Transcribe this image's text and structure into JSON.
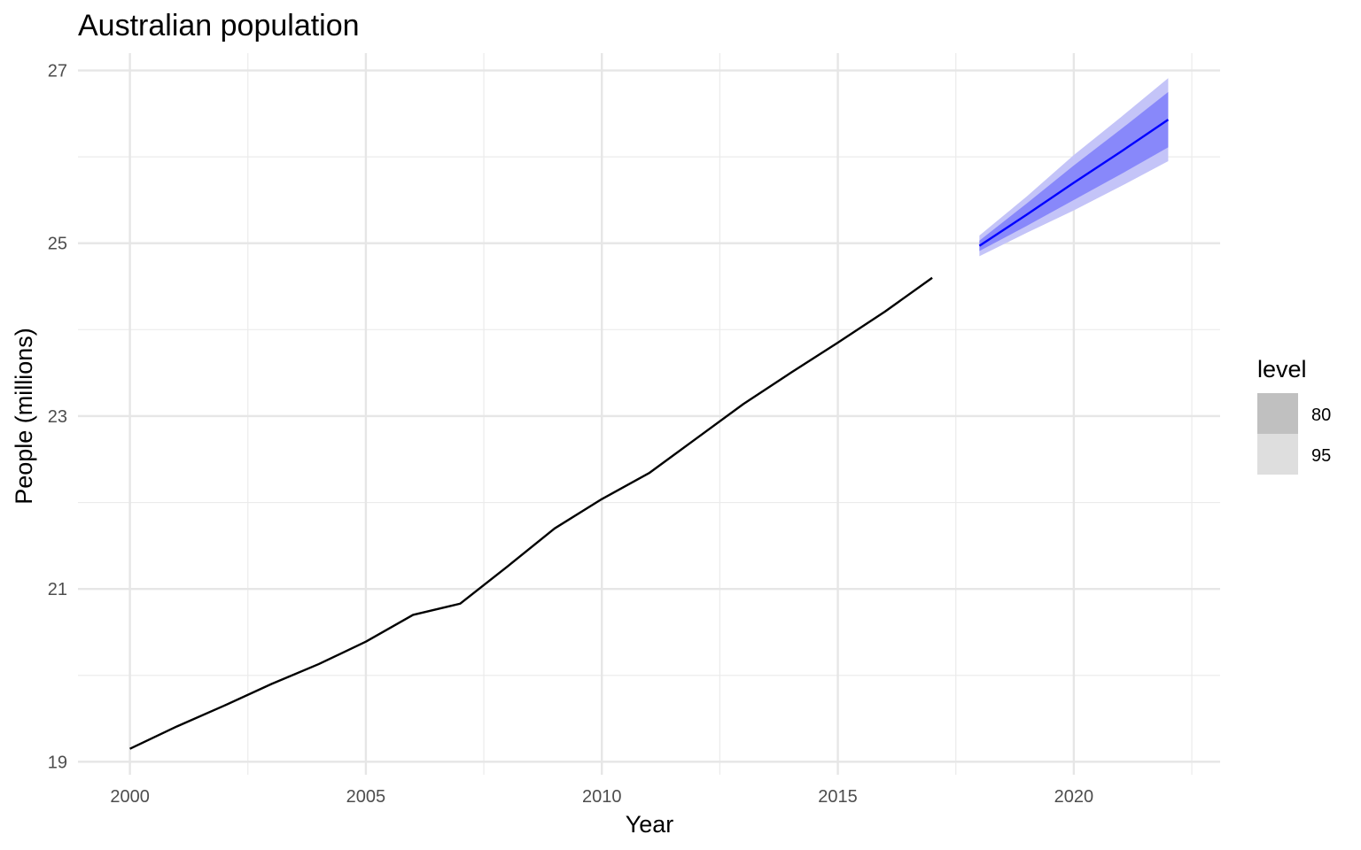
{
  "chart_data": {
    "type": "line",
    "title": "Australian population",
    "xlabel": "Year",
    "ylabel": "People (millions)",
    "xlim": [
      1998.9,
      2023.1
    ],
    "ylim": [
      18.85,
      27.2
    ],
    "x_major_ticks": [
      2000,
      2005,
      2010,
      2015,
      2020
    ],
    "x_minor_ticks": [
      2002.5,
      2007.5,
      2012.5,
      2017.5,
      2022.5
    ],
    "y_major_ticks": [
      19,
      21,
      23,
      25,
      27
    ],
    "y_minor_ticks": [
      20,
      22,
      24,
      26
    ],
    "grid": true,
    "series": [
      {
        "x": [
          2000,
          2001,
          2002,
          2003,
          2004,
          2005,
          2006,
          2007,
          2008,
          2009,
          2010,
          2011,
          2012,
          2013,
          2014,
          2015,
          2016,
          2017
        ],
        "values": [
          19.15,
          19.41,
          19.65,
          19.9,
          20.13,
          20.39,
          20.7,
          20.83,
          21.26,
          21.7,
          22.04,
          22.34,
          22.74,
          23.14,
          23.5,
          23.85,
          24.21,
          24.6
        ],
        "color": "#000000"
      },
      {
        "x": [
          2018,
          2019,
          2020,
          2021,
          2022
        ],
        "values": [
          24.97,
          25.33,
          25.7,
          26.06,
          26.43
        ],
        "lower_80": [
          24.91,
          25.2,
          25.5,
          25.8,
          26.11
        ],
        "upper_80": [
          25.03,
          25.46,
          25.9,
          26.32,
          26.75
        ],
        "lower_95": [
          24.85,
          25.12,
          25.38,
          25.66,
          25.95
        ],
        "upper_95": [
          25.09,
          25.54,
          26.02,
          26.46,
          26.91
        ],
        "color": "#0000ff"
      }
    ],
    "legend": {
      "title": "level",
      "position": "right",
      "items": [
        {
          "label": "80",
          "color": "#c0c0c0"
        },
        {
          "label": "95",
          "color": "#dedede"
        }
      ]
    }
  }
}
